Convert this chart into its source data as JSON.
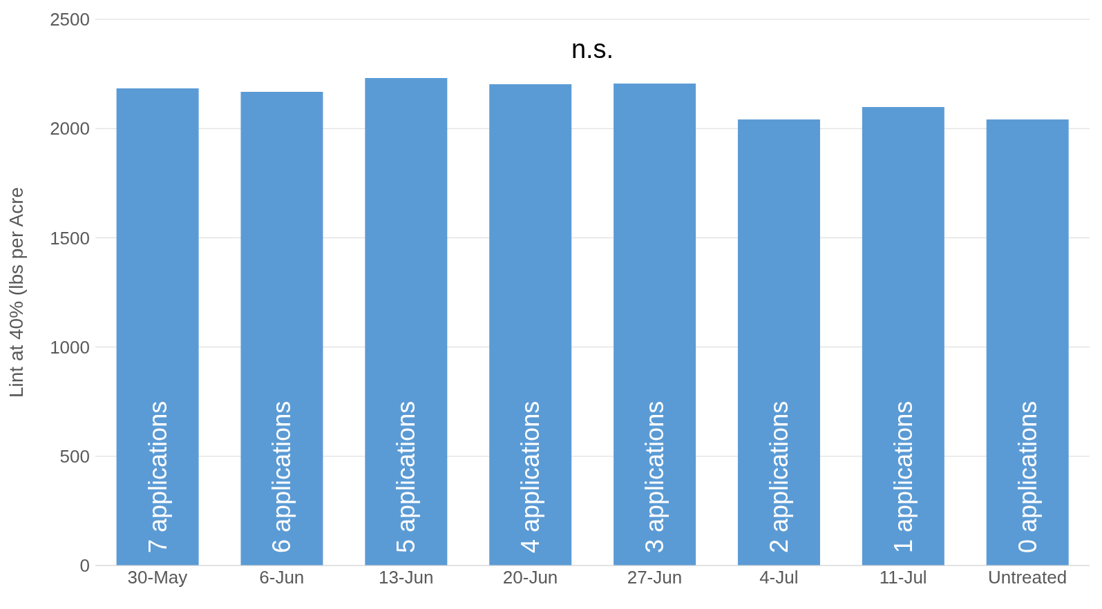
{
  "chart_data": {
    "type": "bar",
    "ylabel": "Lint at 40% (lbs per Acre",
    "categories": [
      "30-May",
      "6-Jun",
      "13-Jun",
      "20-Jun",
      "27-Jun",
      "4-Jul",
      "11-Jul",
      "Untreated"
    ],
    "values": [
      2184,
      2168,
      2231,
      2203,
      2206,
      2042,
      2099,
      2042
    ],
    "color": "#5b9bd5",
    "ylim": [
      0,
      2500
    ],
    "yticks": [
      0,
      500,
      1000,
      1500,
      2000,
      2500
    ],
    "grid": "y",
    "annotations": [
      "n.s.",
      "7 applications",
      "6 applications",
      "5 applications",
      "4 applications",
      "3 applications",
      "2 applications",
      "1 applications",
      "0 applications"
    ]
  }
}
